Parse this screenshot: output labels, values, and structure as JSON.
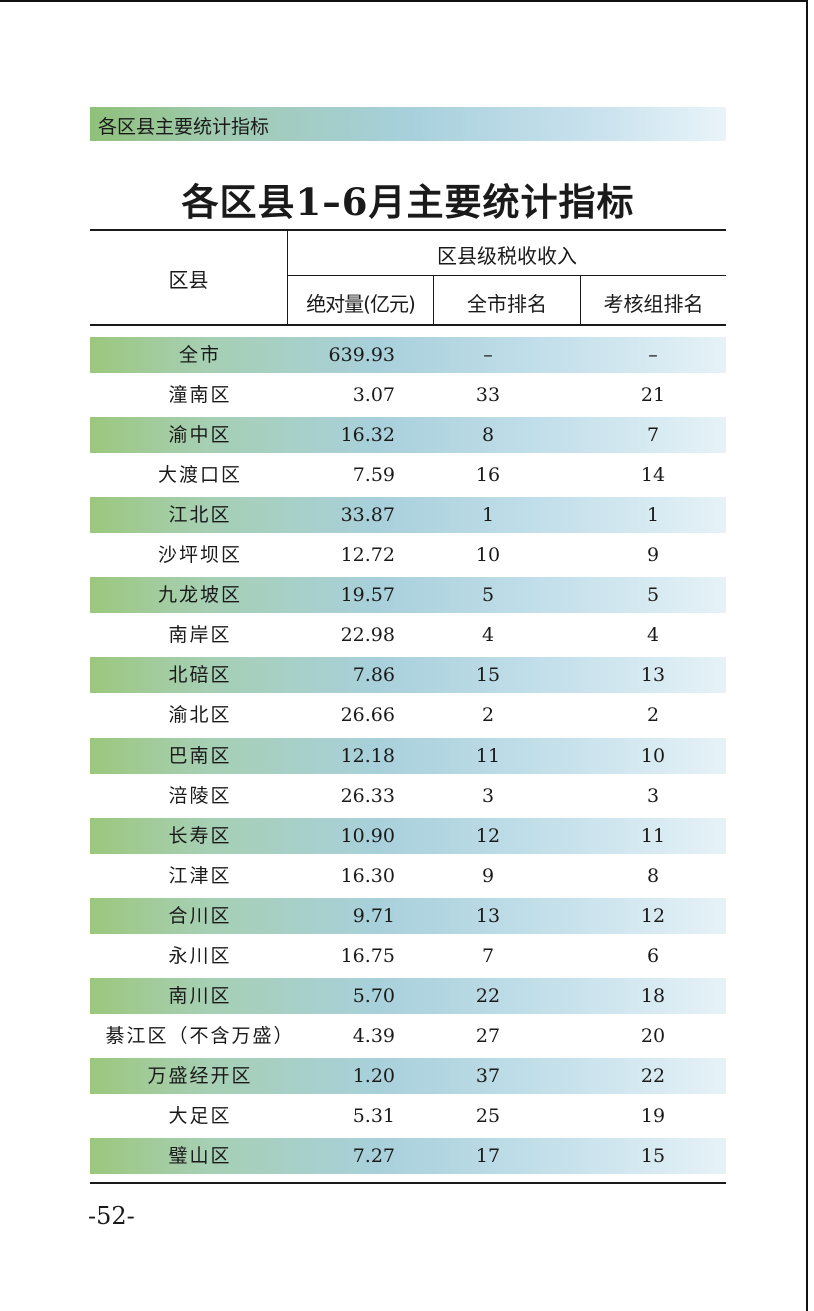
{
  "section_label": "各区县主要统计指标",
  "title": "各区县1–6月主要统计指标",
  "table": {
    "col_district": "区县",
    "group_header": "区县级税收收入",
    "col_value": "绝对量(亿元)",
    "col_city_rank": "全市排名",
    "col_group_rank": "考核组排名",
    "rows": [
      {
        "name": "全市",
        "value": "639.93",
        "city_rank": "–",
        "group_rank": "–"
      },
      {
        "name": "潼南区",
        "value": "3.07",
        "city_rank": "33",
        "group_rank": "21"
      },
      {
        "name": "渝中区",
        "value": "16.32",
        "city_rank": "8",
        "group_rank": "7"
      },
      {
        "name": "大渡口区",
        "value": "7.59",
        "city_rank": "16",
        "group_rank": "14"
      },
      {
        "name": "江北区",
        "value": "33.87",
        "city_rank": "1",
        "group_rank": "1"
      },
      {
        "name": "沙坪坝区",
        "value": "12.72",
        "city_rank": "10",
        "group_rank": "9"
      },
      {
        "name": "九龙坡区",
        "value": "19.57",
        "city_rank": "5",
        "group_rank": "5"
      },
      {
        "name": "南岸区",
        "value": "22.98",
        "city_rank": "4",
        "group_rank": "4"
      },
      {
        "name": "北碚区",
        "value": "7.86",
        "city_rank": "15",
        "group_rank": "13"
      },
      {
        "name": "渝北区",
        "value": "26.66",
        "city_rank": "2",
        "group_rank": "2"
      },
      {
        "name": "巴南区",
        "value": "12.18",
        "city_rank": "11",
        "group_rank": "10"
      },
      {
        "name": "涪陵区",
        "value": "26.33",
        "city_rank": "3",
        "group_rank": "3"
      },
      {
        "name": "长寿区",
        "value": "10.90",
        "city_rank": "12",
        "group_rank": "11"
      },
      {
        "name": "江津区",
        "value": "16.30",
        "city_rank": "9",
        "group_rank": "8"
      },
      {
        "name": "合川区",
        "value": "9.71",
        "city_rank": "13",
        "group_rank": "12"
      },
      {
        "name": "永川区",
        "value": "16.75",
        "city_rank": "7",
        "group_rank": "6"
      },
      {
        "name": "南川区",
        "value": "5.70",
        "city_rank": "22",
        "group_rank": "18"
      },
      {
        "name": "綦江区（不含万盛）",
        "value": "4.39",
        "city_rank": "27",
        "group_rank": "20"
      },
      {
        "name": "万盛经开区",
        "value": "1.20",
        "city_rank": "37",
        "group_rank": "22"
      },
      {
        "name": "大足区",
        "value": "5.31",
        "city_rank": "25",
        "group_rank": "19"
      },
      {
        "name": "璧山区",
        "value": "7.27",
        "city_rank": "17",
        "group_rank": "15"
      }
    ]
  },
  "page_number": "-52-"
}
